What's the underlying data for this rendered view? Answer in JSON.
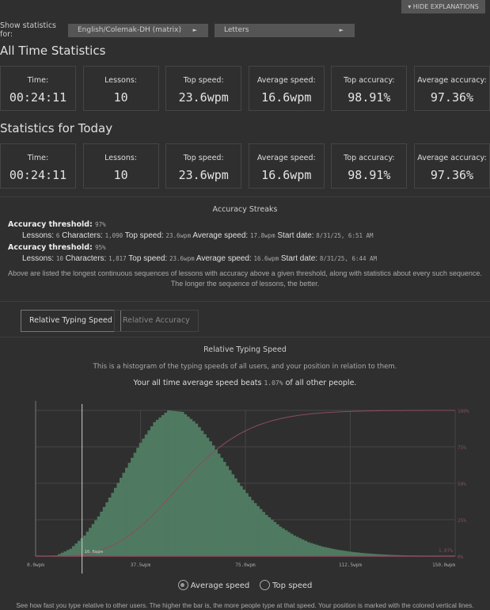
{
  "header": {
    "hide_explanations": "▾ HIDE EXPLANATIONS",
    "show_for_label": "Show statistics for:",
    "layout_select": "English/Colemak-DH (matrix)",
    "mode_select": "Letters"
  },
  "all_time": {
    "title": "All Time Statistics",
    "stats": [
      {
        "label": "Time:",
        "value": "00:24:11"
      },
      {
        "label": "Lessons:",
        "value": "10"
      },
      {
        "label": "Top speed:",
        "value": "23.6wpm"
      },
      {
        "label": "Average speed:",
        "value": "16.6wpm"
      },
      {
        "label": "Top accuracy:",
        "value": "98.91%"
      },
      {
        "label": "Average accuracy:",
        "value": "97.36%"
      }
    ]
  },
  "today": {
    "title": "Statistics for Today",
    "stats": [
      {
        "label": "Time:",
        "value": "00:24:11"
      },
      {
        "label": "Lessons:",
        "value": "10"
      },
      {
        "label": "Top speed:",
        "value": "23.6wpm"
      },
      {
        "label": "Average speed:",
        "value": "16.6wpm"
      },
      {
        "label": "Top accuracy:",
        "value": "98.91%"
      },
      {
        "label": "Average accuracy:",
        "value": "97.36%"
      }
    ]
  },
  "streaks": {
    "title": "Accuracy Streaks",
    "threshold_label": "Accuracy threshold:",
    "lessons_label": "Lessons:",
    "chars_label": "Characters:",
    "top_label": "Top speed:",
    "avg_label": "Average speed:",
    "start_label": "Start date:",
    "items": [
      {
        "threshold": "97%",
        "lessons": "6",
        "characters": "1,090",
        "top": "23.6wpm",
        "avg": "17.8wpm",
        "start": "8/31/25, 6:51 AM"
      },
      {
        "threshold": "95%",
        "lessons": "10",
        "characters": "1,817",
        "top": "23.6wpm",
        "avg": "16.6wpm",
        "start": "8/31/25, 6:44 AM"
      }
    ],
    "note": "Above are listed the longest continuous sequences of lessons with accuracy above a given threshold, along with statistics about every such sequence. The longer the sequence of lessons, the better."
  },
  "tabs": [
    {
      "label": "Relative Typing Speed",
      "active": true
    },
    {
      "label": "Relative Accuracy",
      "active": false
    }
  ],
  "relative": {
    "title": "Relative Typing Speed",
    "desc": "This is a histogram of the typing speeds of all users, and your position in relation to them.",
    "beats_pre": "Your all time average speed beats",
    "beats_value": "1.07%",
    "beats_post": "of all other people.",
    "radio": [
      {
        "label": "Average speed",
        "selected": true
      },
      {
        "label": "Top speed",
        "selected": false
      }
    ],
    "footer": "See how fast you type relative to other users. The higher the bar is, the more people type at that speed. Your position is marked with the colored vertical lines."
  },
  "chart_data": {
    "type": "bar",
    "x_unit": "wpm",
    "xlim": [
      0,
      150
    ],
    "x_ticks": [
      "0.0wpm",
      "37.5wpm",
      "75.0wpm",
      "112.5wpm",
      "150.0wpm"
    ],
    "y2_ticks": [
      "0%",
      "25%",
      "50%",
      "75%",
      "100%"
    ],
    "grid": true,
    "bin_centers": [
      2.5,
      7.5,
      12.5,
      17.5,
      22.5,
      27.5,
      32.5,
      37.5,
      42.5,
      47.5,
      52.5,
      57.5,
      62.5,
      67.5,
      72.5,
      77.5,
      82.5,
      87.5,
      92.5,
      97.5,
      102.5,
      107.5,
      112.5,
      117.5,
      122.5,
      127.5,
      132.5,
      137.5,
      142.5,
      147.5
    ],
    "relative_frequency": [
      0,
      0.5,
      5,
      14,
      27,
      43,
      60,
      77,
      91,
      99,
      98,
      90,
      78,
      64,
      50,
      38,
      28,
      20,
      14,
      9.5,
      6.5,
      4.5,
      3,
      2,
      1.3,
      0.8,
      0.5,
      0.3,
      0.2,
      0.1
    ],
    "marker": {
      "value": 16.6,
      "label": "16.6wpm",
      "percentile_label": "1.07%"
    },
    "colors": {
      "bars": "#4f7a61",
      "cdf": "#8a4d5e",
      "marker": "#cfcfcf"
    }
  }
}
